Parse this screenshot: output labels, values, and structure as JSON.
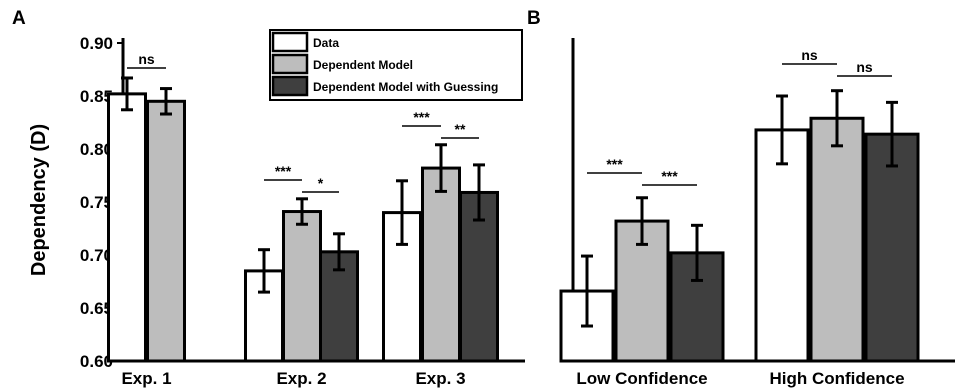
{
  "chart_data": [
    {
      "type": "bar",
      "panel_label": "A",
      "ylabel": "Dependency (D)",
      "ylim": [
        0.6,
        0.9
      ],
      "yticks": [
        "0.90",
        "0.85",
        "0.80",
        "0.75",
        "0.70",
        "0.65",
        "0.60"
      ],
      "categories": [
        "Exp. 1",
        "Exp. 2",
        "Exp. 3"
      ],
      "series": [
        {
          "name": "Data",
          "color": "#ffffff",
          "values": [
            0.852,
            0.685,
            0.74
          ],
          "errors": [
            0.015,
            0.02,
            0.03
          ]
        },
        {
          "name": "Dependent Model",
          "color": "#bdbdbd",
          "values": [
            0.845,
            0.741,
            0.782
          ],
          "errors": [
            0.012,
            0.012,
            0.022
          ]
        },
        {
          "name": "Dependent Model with Guessing",
          "color": "#3f3f3f",
          "values": [
            null,
            0.703,
            0.759
          ],
          "errors": [
            null,
            0.017,
            0.026
          ]
        }
      ],
      "legend_position": "top-right",
      "significance": [
        {
          "label": "ns",
          "category": 0,
          "from": 0,
          "to": 1
        },
        {
          "label": "***",
          "category": 1,
          "from": 0,
          "to": 1
        },
        {
          "label": "*",
          "category": 1,
          "from": 1,
          "to": 2
        },
        {
          "label": "***",
          "category": 2,
          "from": 0,
          "to": 1
        },
        {
          "label": "**",
          "category": 2,
          "from": 1,
          "to": 2
        }
      ]
    },
    {
      "type": "bar",
      "panel_label": "B",
      "ylim": [
        0.6,
        0.9
      ],
      "categories": [
        "Low Confidence",
        "High Confidence"
      ],
      "series": [
        {
          "name": "Data",
          "color": "#ffffff",
          "values": [
            0.666,
            0.818
          ],
          "errors": [
            0.033,
            0.032
          ]
        },
        {
          "name": "Dependent Model",
          "color": "#bdbdbd",
          "values": [
            0.732,
            0.829
          ],
          "errors": [
            0.022,
            0.026
          ]
        },
        {
          "name": "Dependent Model with Guessing",
          "color": "#3f3f3f",
          "values": [
            0.702,
            0.814
          ],
          "errors": [
            0.026,
            0.03
          ]
        }
      ],
      "significance": [
        {
          "label": "***",
          "category": 0,
          "from": 0,
          "to": 1
        },
        {
          "label": "***",
          "category": 0,
          "from": 1,
          "to": 2
        },
        {
          "label": "ns",
          "category": 1,
          "from": 0,
          "to": 1
        },
        {
          "label": "ns",
          "category": 1,
          "from": 1,
          "to": 2
        }
      ]
    }
  ]
}
